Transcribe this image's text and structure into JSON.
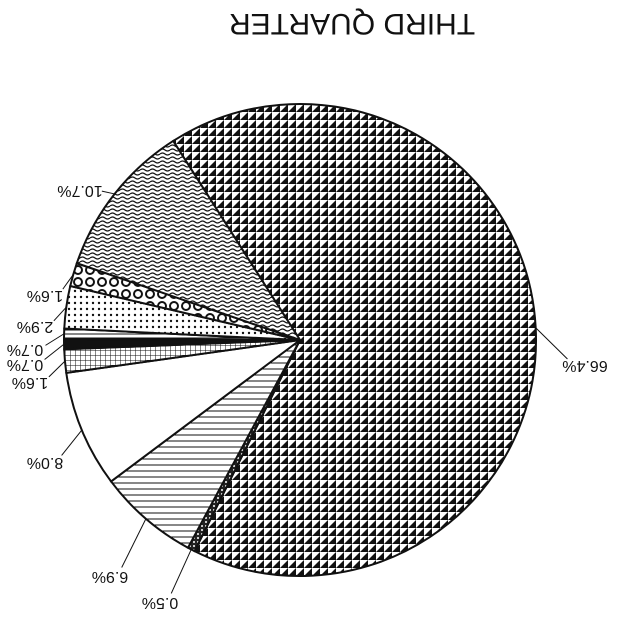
{
  "chart_data": {
    "type": "pie",
    "title": "THIRD QUARTER",
    "values": [
      66.4,
      0.5,
      6.9,
      8.0,
      1.6,
      0.7,
      0.7,
      2.9,
      1.6,
      10.7
    ],
    "value_labels": [
      "66.4%",
      "0.5%",
      "6.9%",
      "8.0%",
      "1.6%",
      "0.7%",
      "0.7%",
      "2.9%",
      "1.6%",
      "10.7%"
    ]
  }
}
